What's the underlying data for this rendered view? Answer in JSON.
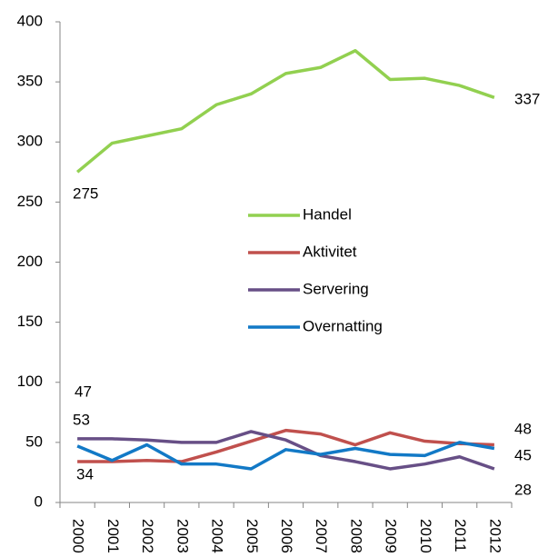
{
  "chart_data": {
    "type": "line",
    "categories": [
      "2000",
      "2001",
      "2002",
      "2003",
      "2004",
      "2005",
      "2006",
      "2007",
      "2008",
      "2009",
      "2010",
      "2011",
      "2012"
    ],
    "series": [
      {
        "name": "Handel",
        "color": "#92d050",
        "values": [
          275,
          299,
          305,
          311,
          331,
          340,
          357,
          362,
          376,
          352,
          353,
          347,
          337
        ]
      },
      {
        "name": "Aktivitet",
        "color": "#c0504d",
        "values": [
          34,
          34,
          35,
          34,
          42,
          51,
          60,
          57,
          48,
          58,
          51,
          49,
          48
        ]
      },
      {
        "name": "Servering",
        "color": "#674f86",
        "values": [
          53,
          53,
          52,
          50,
          50,
          59,
          52,
          39,
          34,
          28,
          32,
          38,
          28
        ]
      },
      {
        "name": "Overnatting",
        "color": "#1279c6",
        "values": [
          47,
          35,
          48,
          32,
          32,
          28,
          44,
          40,
          45,
          40,
          39,
          50,
          45
        ]
      }
    ],
    "ylim": [
      0,
      400
    ],
    "yticks": [
      0,
      50,
      100,
      150,
      200,
      250,
      300,
      350,
      400
    ],
    "grid": false
  }
}
